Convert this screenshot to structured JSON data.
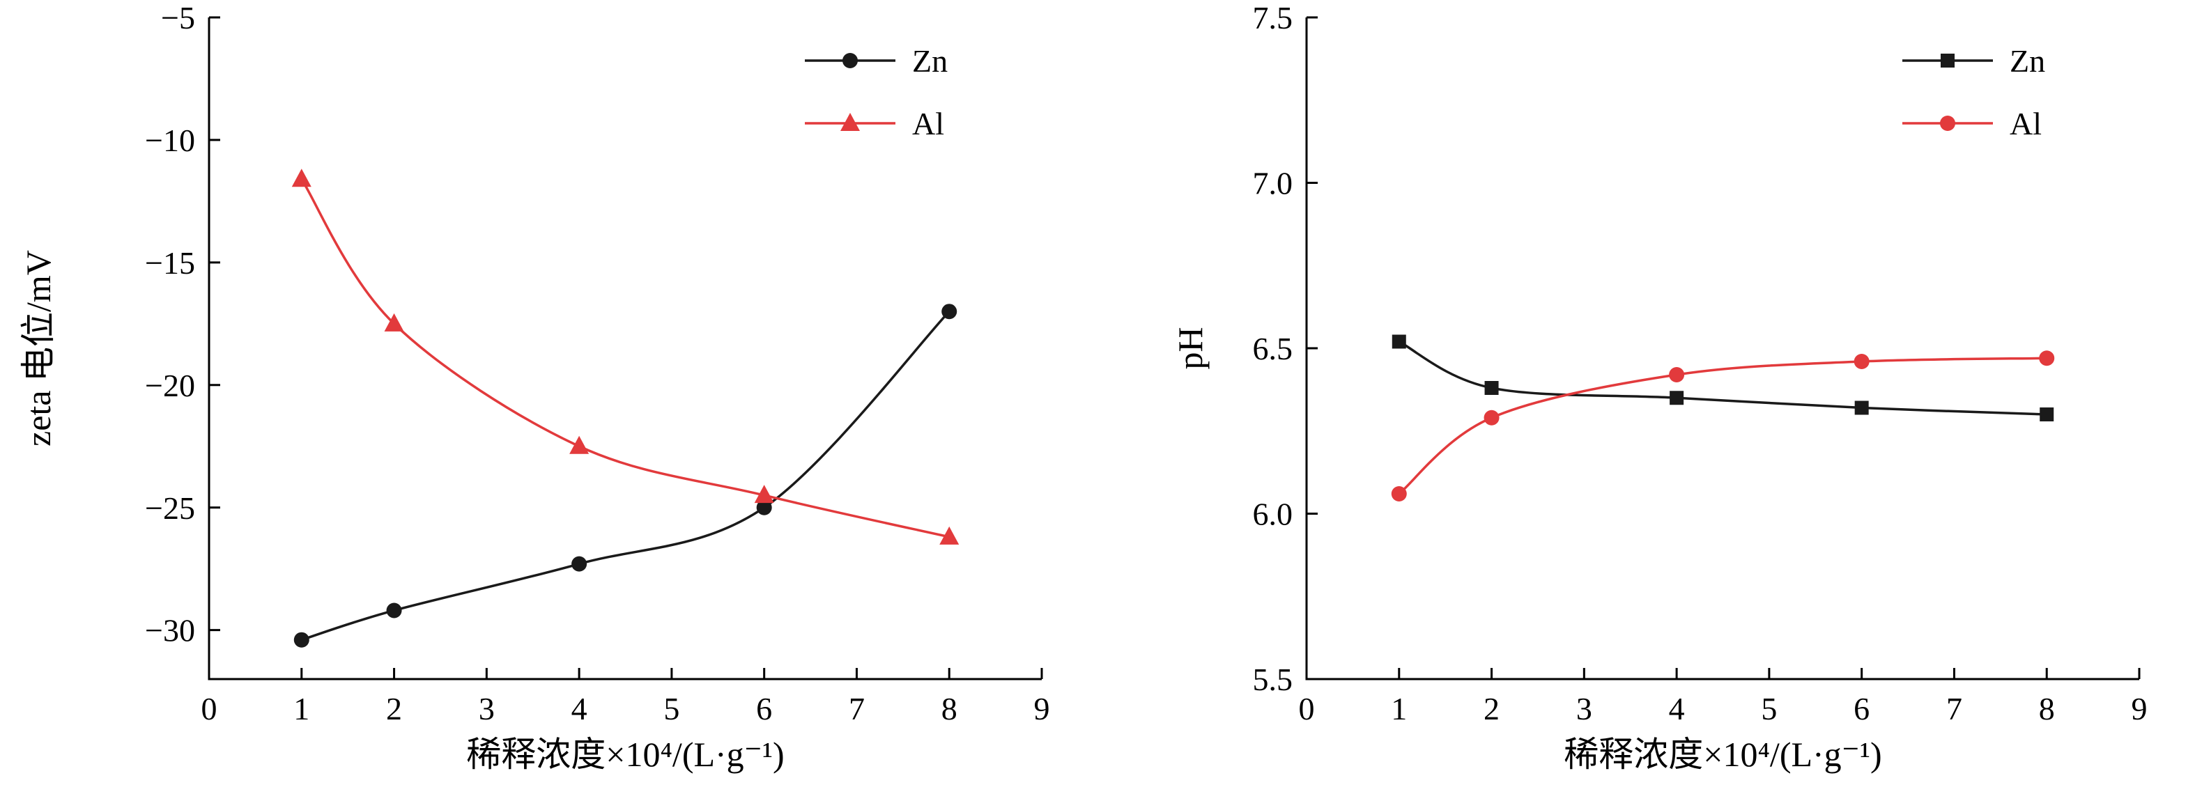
{
  "figure": {
    "background": "#ffffff",
    "description": "Two line charts: zeta potential vs dilution concentration (left) and pH vs dilution concentration (right), each with Zn and Al series"
  },
  "colors": {
    "zn_series": "#1a1a1a",
    "al_series": "#e23a3c",
    "axis": "#000000"
  },
  "chart_data": [
    {
      "type": "line",
      "title": "",
      "xlabel": "稀释浓度×10⁴/(L·g⁻¹)",
      "ylabel": "zeta 电位/mV",
      "xlim": [
        0,
        9
      ],
      "ylim": [
        -32,
        -5
      ],
      "xticks": [
        0,
        1,
        2,
        3,
        4,
        5,
        6,
        7,
        8,
        9
      ],
      "xticklabels": [
        "0",
        "1",
        "2",
        "3",
        "4",
        "5",
        "6",
        "7",
        "8",
        "9"
      ],
      "yticks": [
        -30,
        -25,
        -20,
        -15,
        -10,
        -5
      ],
      "yticklabels": [
        "−30",
        "−25",
        "−20",
        "−15",
        "−10",
        "−5"
      ],
      "grid": false,
      "legend_position": "top-right",
      "x": [
        1,
        2,
        4,
        6,
        8
      ],
      "series": [
        {
          "name": "Zn",
          "color": "#1a1a1a",
          "marker": "circle",
          "values": [
            -30.4,
            -29.2,
            -27.3,
            -25.0,
            -17.0
          ]
        },
        {
          "name": "Al",
          "color": "#e23a3c",
          "marker": "triangle",
          "values": [
            -11.6,
            -17.5,
            -22.5,
            -24.5,
            -26.2
          ]
        }
      ]
    },
    {
      "type": "line",
      "title": "",
      "xlabel": "稀释浓度×10⁴/(L·g⁻¹)",
      "ylabel": "pH",
      "xlim": [
        0,
        9
      ],
      "ylim": [
        5.5,
        7.5
      ],
      "xticks": [
        0,
        1,
        2,
        3,
        4,
        5,
        6,
        7,
        8,
        9
      ],
      "xticklabels": [
        "0",
        "1",
        "2",
        "3",
        "4",
        "5",
        "6",
        "7",
        "8",
        "9"
      ],
      "yticks": [
        5.5,
        6.0,
        6.5,
        7.0,
        7.5
      ],
      "yticklabels": [
        "5.5",
        "6.0",
        "6.5",
        "7.0",
        "7.5"
      ],
      "grid": false,
      "legend_position": "top-right",
      "x": [
        1,
        2,
        4,
        6,
        8
      ],
      "series": [
        {
          "name": "Zn",
          "color": "#1a1a1a",
          "marker": "square",
          "values": [
            6.52,
            6.38,
            6.35,
            6.32,
            6.3
          ]
        },
        {
          "name": "Al",
          "color": "#e23a3c",
          "marker": "circle",
          "values": [
            6.06,
            6.29,
            6.42,
            6.46,
            6.47
          ]
        }
      ]
    }
  ]
}
